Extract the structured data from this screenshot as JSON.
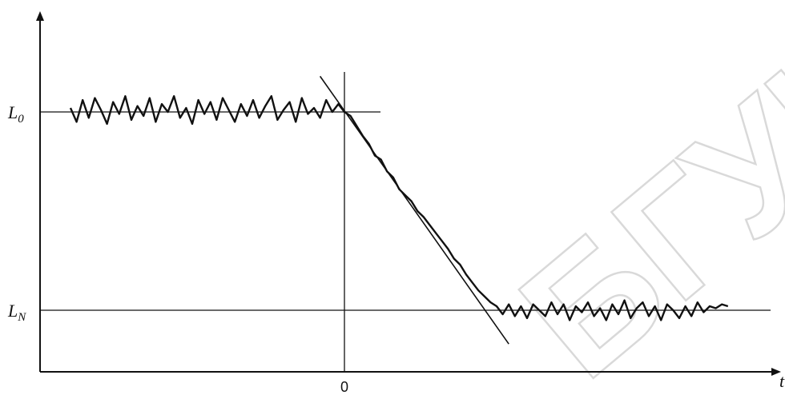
{
  "chart_data": {
    "type": "line",
    "title": "",
    "x_axis_label": "t",
    "y_axis_label": "",
    "x_tick_labels": [
      "0"
    ],
    "reference_levels": [
      {
        "name": "L0",
        "sub": "0",
        "value": 1.0
      },
      {
        "name": "LN",
        "sub": "N",
        "value": 0.0
      }
    ],
    "xlim": [
      -10,
      14
    ],
    "ylim": [
      -0.3,
      1.3
    ],
    "tangent": {
      "points": [
        [
          -0.8,
          1.18
        ],
        [
          5.4,
          -0.17
        ]
      ]
    },
    "series": [
      {
        "x": [
          -9.0,
          -8.8,
          -8.6,
          -8.4,
          -8.2,
          -8.0,
          -7.8,
          -7.6,
          -7.4,
          -7.2,
          -7.0,
          -6.8,
          -6.6,
          -6.4,
          -6.2,
          -6.0,
          -5.8,
          -5.6,
          -5.4,
          -5.2,
          -5.0,
          -4.8,
          -4.6,
          -4.4,
          -4.2,
          -4.0,
          -3.8,
          -3.6,
          -3.4,
          -3.2,
          -3.0,
          -2.8,
          -2.6,
          -2.4,
          -2.2,
          -2.0,
          -1.8,
          -1.6,
          -1.4,
          -1.2,
          -1.0,
          -0.8,
          -0.6,
          -0.4,
          -0.2,
          0.0,
          0.2,
          0.4,
          0.6,
          0.8,
          1.0,
          1.2,
          1.4,
          1.6,
          1.8,
          2.0,
          2.2,
          2.4,
          2.6,
          2.8,
          3.0,
          3.2,
          3.4,
          3.6,
          3.8,
          4.0,
          4.2,
          4.4,
          4.6,
          4.8,
          5.0,
          5.2,
          5.4,
          5.6,
          5.8,
          6.0,
          6.2,
          6.4,
          6.6,
          6.8,
          7.0,
          7.2,
          7.4,
          7.6,
          7.8,
          8.0,
          8.2,
          8.4,
          8.6,
          8.8,
          9.0,
          9.2,
          9.4,
          9.6,
          9.8,
          10.0,
          10.2,
          10.4,
          10.6,
          10.8,
          11.0,
          11.2,
          11.4,
          11.6,
          11.8,
          12.0,
          12.2,
          12.4,
          12.6
        ],
        "y": [
          1.02,
          0.95,
          1.06,
          0.97,
          1.07,
          1.01,
          0.94,
          1.05,
          0.99,
          1.08,
          0.96,
          1.03,
          0.98,
          1.07,
          0.95,
          1.04,
          1.0,
          1.08,
          0.97,
          1.02,
          0.94,
          1.06,
          0.99,
          1.05,
          0.96,
          1.07,
          1.01,
          0.95,
          1.04,
          0.98,
          1.06,
          0.97,
          1.03,
          1.08,
          0.96,
          1.01,
          1.05,
          0.95,
          1.07,
          0.99,
          1.02,
          0.97,
          1.06,
          1.0,
          1.04,
          1.0,
          0.98,
          0.93,
          0.88,
          0.84,
          0.78,
          0.76,
          0.7,
          0.67,
          0.61,
          0.58,
          0.55,
          0.5,
          0.47,
          0.43,
          0.39,
          0.35,
          0.31,
          0.26,
          0.23,
          0.18,
          0.14,
          0.1,
          0.07,
          0.04,
          0.02,
          -0.02,
          0.03,
          -0.03,
          0.02,
          -0.04,
          0.03,
          0.0,
          -0.03,
          0.04,
          -0.02,
          0.03,
          -0.05,
          0.02,
          -0.01,
          0.04,
          -0.03,
          0.01,
          -0.05,
          0.03,
          -0.02,
          0.05,
          -0.04,
          0.01,
          0.04,
          -0.03,
          0.02,
          -0.05,
          0.03,
          0.0,
          -0.04,
          0.02,
          -0.03,
          0.04,
          -0.01,
          0.02,
          0.01,
          0.03,
          0.02
        ]
      }
    ]
  },
  "watermark": "БГУИР"
}
